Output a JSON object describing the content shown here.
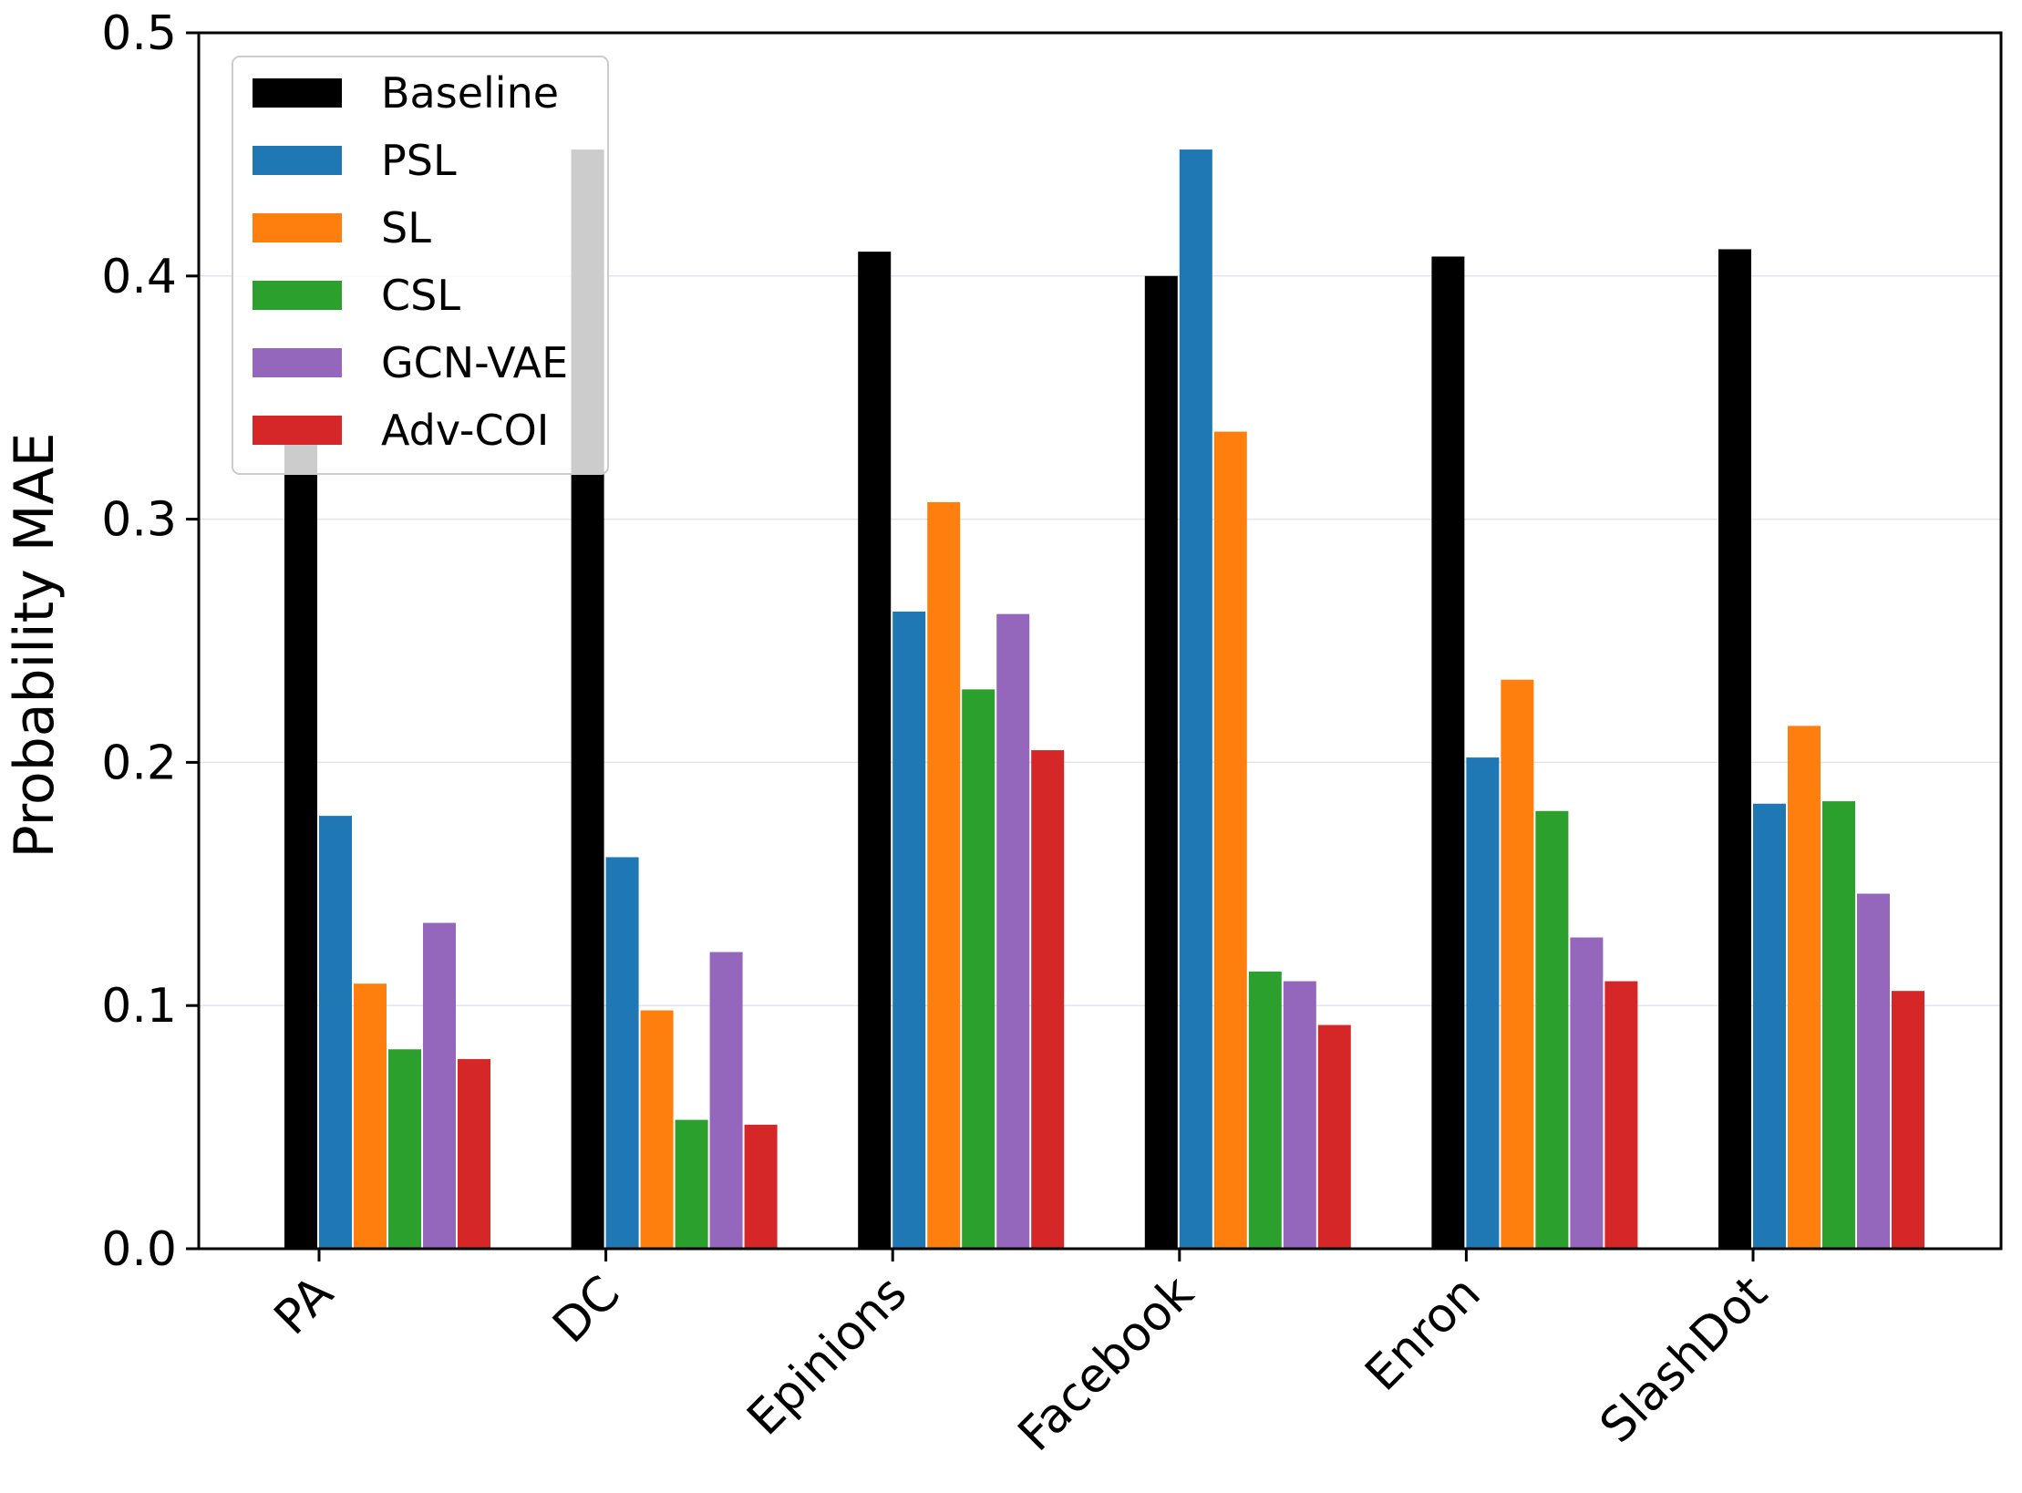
{
  "chart_data": {
    "type": "bar",
    "title": "",
    "xlabel": "",
    "ylabel": "Probability MAE",
    "ylim": [
      0,
      0.5
    ],
    "yticks": [
      "0.0",
      "0.1",
      "0.2",
      "0.3",
      "0.4",
      "0.5"
    ],
    "grid": true,
    "legend_position": "top-left",
    "categories": [
      "PA",
      "DC",
      "Epinions",
      "Facebook",
      "Enron",
      "SlashDot"
    ],
    "series": [
      {
        "name": "Baseline",
        "color": "#000000",
        "values": [
          0.332,
          0.452,
          0.41,
          0.4,
          0.408,
          0.411
        ]
      },
      {
        "name": "PSL",
        "color": "#1f77b4",
        "values": [
          0.178,
          0.161,
          0.262,
          0.452,
          0.202,
          0.183
        ]
      },
      {
        "name": "SL",
        "color": "#ff7f0e",
        "values": [
          0.109,
          0.098,
          0.307,
          0.336,
          0.234,
          0.215
        ]
      },
      {
        "name": "CSL",
        "color": "#2ca02c",
        "values": [
          0.082,
          0.053,
          0.23,
          0.114,
          0.18,
          0.184
        ]
      },
      {
        "name": "GCN-VAE",
        "color": "#9467bd",
        "values": [
          0.134,
          0.122,
          0.261,
          0.11,
          0.128,
          0.146
        ]
      },
      {
        "name": "Adv-COI",
        "color": "#d62728",
        "values": [
          0.078,
          0.051,
          0.205,
          0.092,
          0.11,
          0.106
        ]
      }
    ]
  }
}
